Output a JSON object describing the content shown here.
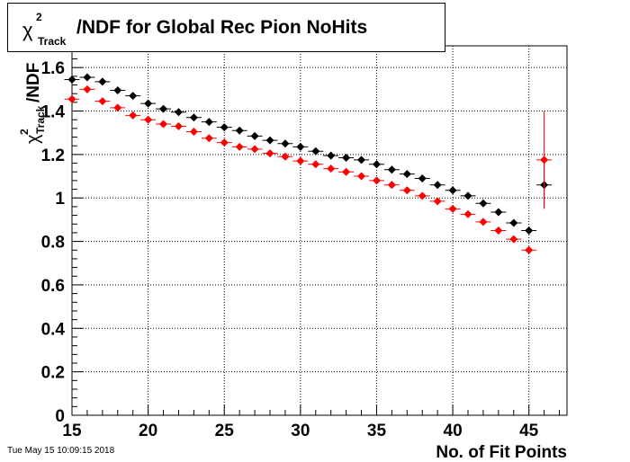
{
  "title": {
    "chi_symbol": "χ",
    "chi_sup": "2",
    "chi_sub": "Track",
    "rest": "/NDF for Global Rec Pion NoHits"
  },
  "ylabel": {
    "chi_symbol": "χ",
    "chi_sup": "2",
    "chi_sub": "Track",
    "rest": "/NDF"
  },
  "xlabel": "No. of Fit Points",
  "datestamp": "Tue May 15 10:09:15 2018",
  "colors": {
    "series1": "#000000",
    "series2": "#ff0000",
    "grid": "#000000"
  },
  "chart_data": {
    "type": "scatter",
    "xlim": [
      15,
      47.5
    ],
    "ylim": [
      0,
      1.7
    ],
    "grid": true,
    "x_ticks": [
      15,
      20,
      25,
      30,
      35,
      40,
      45
    ],
    "y_ticks": [
      0,
      0.2,
      0.4,
      0.6,
      0.8,
      1,
      1.2,
      1.4,
      1.6
    ],
    "x_tick_labels": [
      "15",
      "20",
      "25",
      "30",
      "35",
      "40",
      "45"
    ],
    "y_tick_labels": [
      "0",
      "0.2",
      "0.4",
      "0.6",
      "0.8",
      "1",
      "1.2",
      "1.4",
      "1.6"
    ],
    "series": [
      {
        "color": "#000000",
        "x": [
          15,
          16,
          17,
          18,
          19,
          20,
          21,
          22,
          23,
          24,
          25,
          26,
          27,
          28,
          29,
          30,
          31,
          32,
          33,
          34,
          35,
          36,
          37,
          38,
          39,
          40,
          41,
          42,
          43,
          44,
          45,
          46
        ],
        "y": [
          1.545,
          1.555,
          1.535,
          1.495,
          1.47,
          1.435,
          1.41,
          1.395,
          1.37,
          1.35,
          1.325,
          1.31,
          1.285,
          1.265,
          1.25,
          1.235,
          1.215,
          1.195,
          1.185,
          1.175,
          1.155,
          1.13,
          1.11,
          1.09,
          1.06,
          1.035,
          1.01,
          0.975,
          0.935,
          0.885,
          0.85,
          1.06
        ],
        "yerr": [
          0,
          0,
          0,
          0,
          0,
          0,
          0,
          0,
          0,
          0,
          0,
          0,
          0,
          0,
          0,
          0,
          0,
          0,
          0,
          0,
          0,
          0,
          0,
          0,
          0,
          0,
          0,
          0,
          0,
          0,
          0,
          0.105
        ]
      },
      {
        "color": "#ff0000",
        "x": [
          15,
          16,
          17,
          18,
          19,
          20,
          21,
          22,
          23,
          24,
          25,
          26,
          27,
          28,
          29,
          30,
          31,
          32,
          33,
          34,
          35,
          36,
          37,
          38,
          39,
          40,
          41,
          42,
          43,
          44,
          45,
          46
        ],
        "y": [
          1.455,
          1.5,
          1.445,
          1.415,
          1.38,
          1.36,
          1.34,
          1.33,
          1.305,
          1.275,
          1.255,
          1.235,
          1.225,
          1.205,
          1.19,
          1.17,
          1.155,
          1.135,
          1.12,
          1.1,
          1.08,
          1.06,
          1.035,
          1.01,
          0.985,
          0.95,
          0.925,
          0.89,
          0.85,
          0.81,
          0.76,
          1.175
        ],
        "yerr": [
          0,
          0,
          0,
          0,
          0,
          0,
          0,
          0,
          0,
          0,
          0,
          0,
          0,
          0,
          0,
          0,
          0,
          0,
          0,
          0,
          0,
          0,
          0,
          0,
          0,
          0,
          0,
          0,
          0,
          0,
          0,
          0.225
        ]
      }
    ]
  }
}
